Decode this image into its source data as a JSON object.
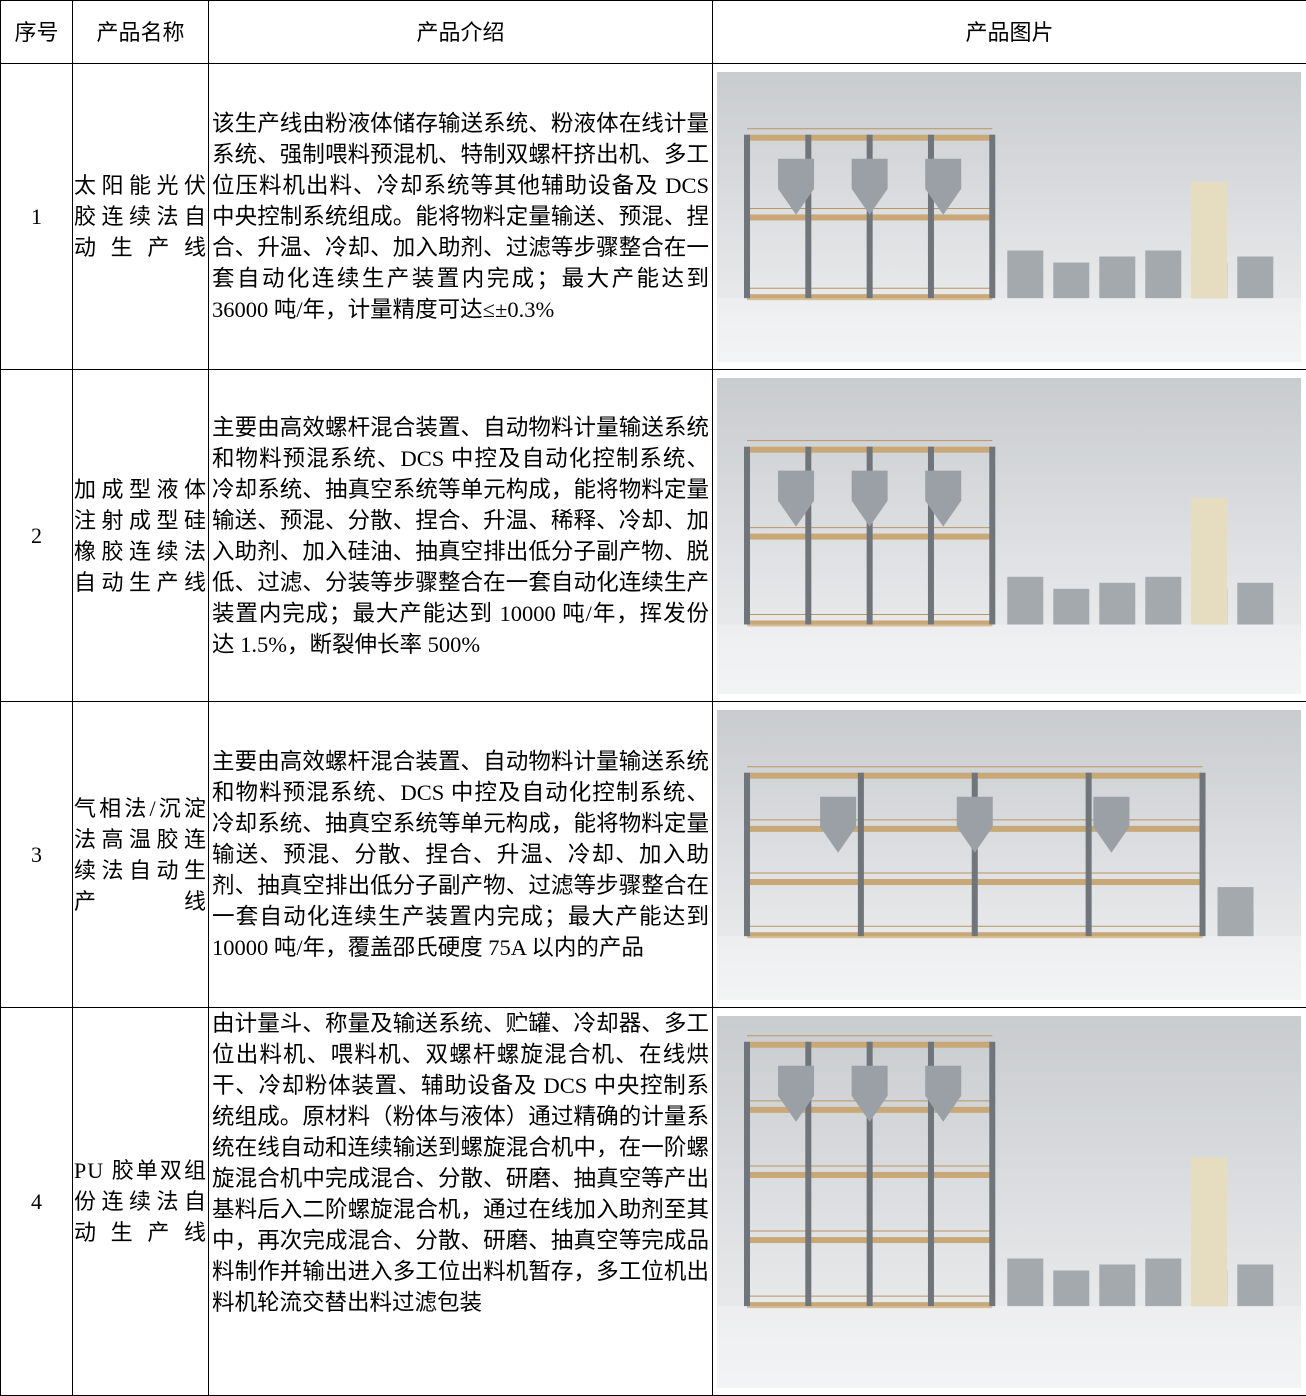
{
  "table": {
    "header": [
      "序号",
      "产品名称",
      "产品介绍",
      "产品图片"
    ],
    "rows": [
      [
        1,
        "太阳能光伏胶连续法自动生产线",
        "该生产线由粉液体储存输送系统、粉液体在线计量系统、强制喂料预混机、特制双螺杆挤出机、多工位压料机出料、冷却系统等其他辅助设备及 DCS 中央控制系统组成。能将物料定量输送、预混、捏合、升温、冷却、加入助剂、过滤等步骤整合在一套自动化连续生产装置内完成；最大产能达到 36000 吨/年，计量精度可达≤±0.3%"
      ],
      [
        2,
        "加成型液体注射成型硅橡胶连续法自动生产线",
        "主要由高效螺杆混合装置、自动物料计量输送系统和物料预混系统、DCS 中控及自动化控制系统、冷却系统、抽真空系统等单元构成，能将物料定量输送、预混、分散、捏合、升温、稀释、冷却、加入助剂、加入硅油、抽真空排出低分子副产物、脱低、过滤、分装等步骤整合在一套自动化连续生产装置内完成；最大产能达到 10000 吨/年，挥发份达 1.5%，断裂伸长率 500%"
      ],
      [
        3,
        "气相法/沉淀法高温胶连续法自动生产线",
        "主要由高效螺杆混合装置、自动物料计量输送系统和物料预混系统、DCS 中控及自动化控制系统、冷却系统、抽真空系统等单元构成，能将物料定量输送、预混、分散、捏合、升温、冷却、加入助剂、抽真空排出低分子副产物、过滤等步骤整合在一套自动化连续生产装置内完成；最大产能达到 10000 吨/年，覆盖邵氏硬度 75A 以内的产品"
      ],
      [
        4,
        "PU 胶单双组份连续法自动生产线",
        "由计量斗、称量及输送系统、贮罐、冷却器、多工位出料机、喂料机、双螺杆螺旋混合机、在线烘干、冷却粉体装置、辅助设备及 DCS 中央控制系统组成。原材料（粉体与液体）通过精确的计量系统在线自动和连续输送到螺旋混合机中，在一阶螺旋混合机中完成混合、分散、研磨、抽真空等产出基料后入二阶螺旋混合机，通过在线加入助剂至其中，再次完成混合、分散、研磨、抽真空等完成品料制作并输出进入多工位出料机暂存，多工位机出料机轮流交替出料过滤包装"
      ]
    ]
  }
}
